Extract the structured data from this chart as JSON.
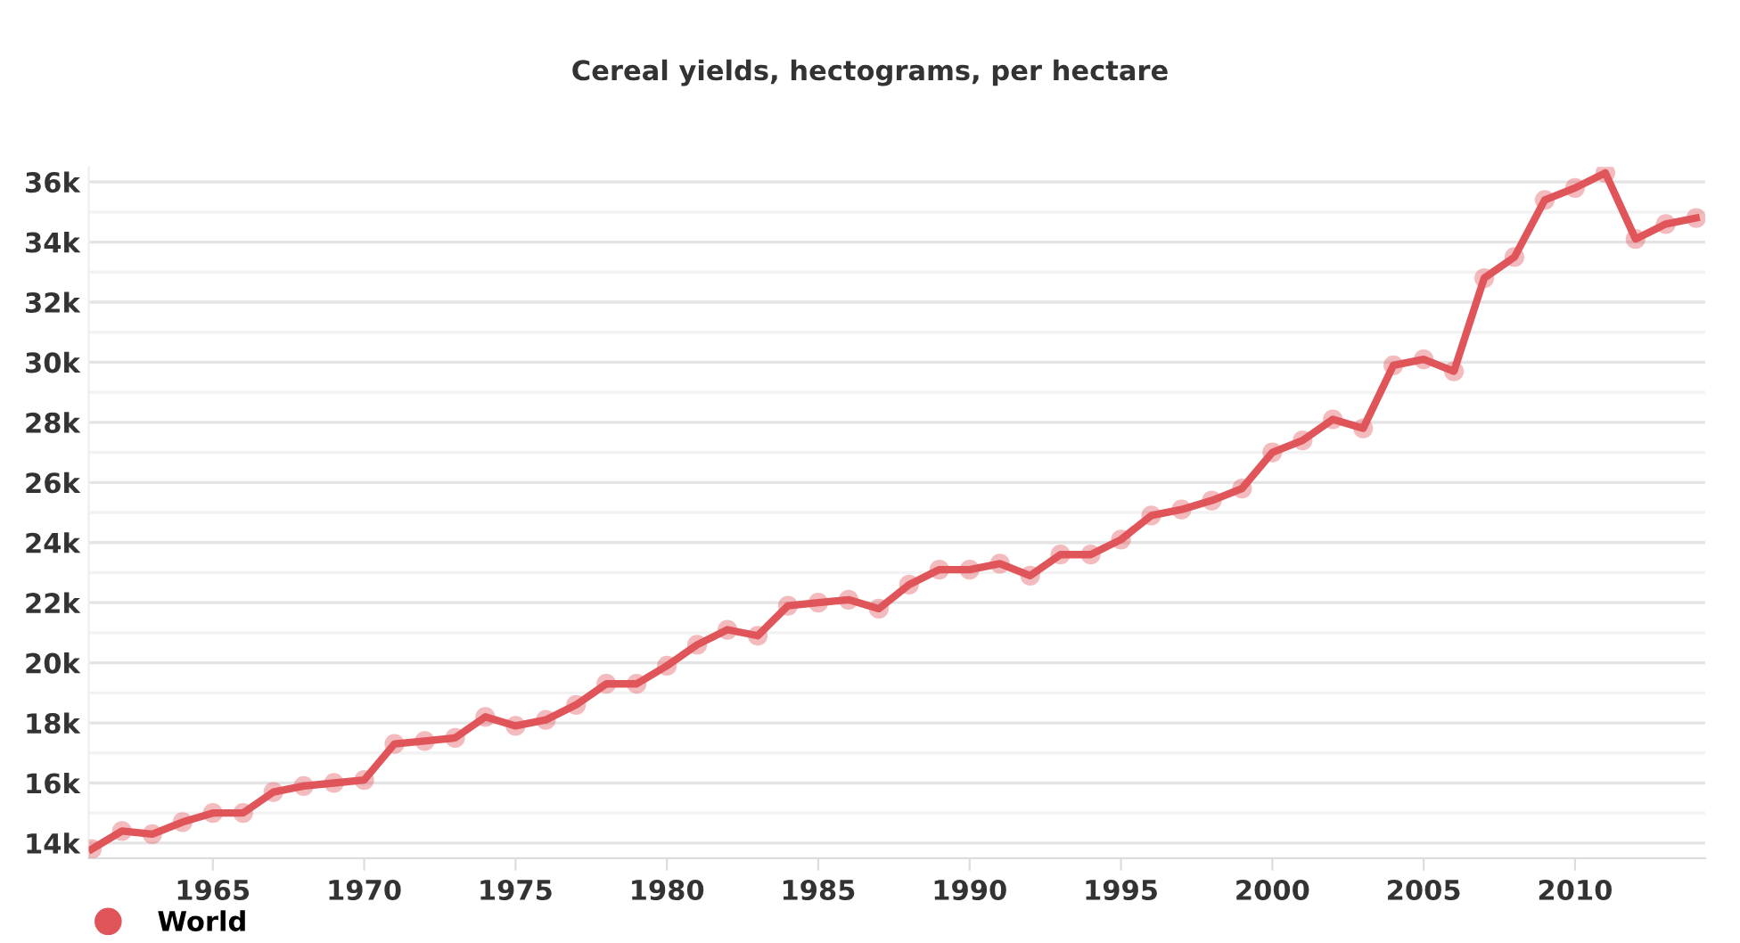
{
  "chart_data": {
    "type": "line",
    "title": "Cereal yields, hectograms, per hectare",
    "x": [
      1961,
      1962,
      1963,
      1964,
      1965,
      1966,
      1967,
      1968,
      1969,
      1970,
      1971,
      1972,
      1973,
      1974,
      1975,
      1976,
      1977,
      1978,
      1979,
      1980,
      1981,
      1982,
      1983,
      1984,
      1985,
      1986,
      1987,
      1988,
      1989,
      1990,
      1991,
      1992,
      1993,
      1994,
      1995,
      1996,
      1997,
      1998,
      1999,
      2000,
      2001,
      2002,
      2003,
      2004,
      2005,
      2006,
      2007,
      2008,
      2009,
      2010,
      2011,
      2012,
      2013,
      2014
    ],
    "series": [
      {
        "name": "World",
        "color": "#e0555a",
        "values": [
          13800,
          14400,
          14300,
          14700,
          15000,
          15000,
          15700,
          15900,
          16000,
          16100,
          17300,
          17400,
          17500,
          18200,
          17900,
          18100,
          18600,
          19300,
          19300,
          19900,
          20600,
          21100,
          20900,
          21900,
          22000,
          22100,
          21800,
          22600,
          23100,
          23100,
          23300,
          22900,
          23600,
          23600,
          24100,
          24900,
          25100,
          25400,
          25800,
          27000,
          27400,
          28100,
          27800,
          29900,
          30100,
          29700,
          32800,
          33500,
          35400,
          35800,
          36300,
          34100,
          34600,
          34800
        ]
      }
    ],
    "xlim": [
      1960.9,
      2014.3
    ],
    "xticks": [
      1965,
      1970,
      1975,
      1980,
      1985,
      1990,
      1995,
      2000,
      2005,
      2010
    ],
    "ylim": [
      13500,
      36500
    ],
    "yticks": [
      {
        "value": 14000,
        "label": "14k"
      },
      {
        "value": 15000,
        "label": null
      },
      {
        "value": 16000,
        "label": "16k"
      },
      {
        "value": 17000,
        "label": null
      },
      {
        "value": 18000,
        "label": "18k"
      },
      {
        "value": 19000,
        "label": null
      },
      {
        "value": 20000,
        "label": "20k"
      },
      {
        "value": 21000,
        "label": null
      },
      {
        "value": 22000,
        "label": "22k"
      },
      {
        "value": 23000,
        "label": null
      },
      {
        "value": 24000,
        "label": "24k"
      },
      {
        "value": 25000,
        "label": null
      },
      {
        "value": 26000,
        "label": "26k"
      },
      {
        "value": 27000,
        "label": null
      },
      {
        "value": 28000,
        "label": "28k"
      },
      {
        "value": 29000,
        "label": null
      },
      {
        "value": 30000,
        "label": "30k"
      },
      {
        "value": 31000,
        "label": null
      },
      {
        "value": 32000,
        "label": "32k"
      },
      {
        "value": 33000,
        "label": null
      },
      {
        "value": 34000,
        "label": "34k"
      },
      {
        "value": 35000,
        "label": null
      },
      {
        "value": 36000,
        "label": "36k"
      }
    ],
    "grid": "y",
    "legend": "bottom left",
    "marker": "circle",
    "line_style": "solid"
  }
}
